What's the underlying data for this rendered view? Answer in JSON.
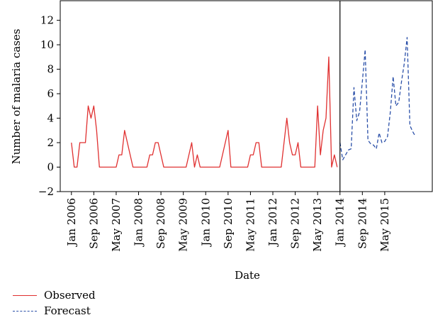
{
  "chart_data": {
    "type": "line",
    "xlabel": "Date",
    "ylabel": "Number of malaria cases",
    "ylim": [
      -2,
      13.6
    ],
    "yticks": [
      -2,
      0,
      2,
      4,
      6,
      8,
      10,
      12
    ],
    "xlim": [
      "2005-09",
      "2016-10"
    ],
    "xtick_labels": [
      "Jan 2006",
      "Sep 2006",
      "May 2007",
      "Jan 2008",
      "Sep 2008",
      "May 2009",
      "Jan 2010",
      "Sep 2010",
      "May 2011",
      "Jan 2012",
      "Sep 2012",
      "May 2013",
      "Jan 2014",
      "Sep 2014",
      "May 2015"
    ],
    "xtick_dates": [
      "2006-01",
      "2006-09",
      "2007-05",
      "2008-01",
      "2008-09",
      "2009-05",
      "2010-01",
      "2010-09",
      "2011-05",
      "2012-01",
      "2012-09",
      "2013-05",
      "2014-01",
      "2014-09",
      "2015-05"
    ],
    "split_date": "2014-01",
    "series": [
      {
        "name": "Observed",
        "color": "#e03030",
        "dash": "solid",
        "points": [
          [
            "2006-01",
            2
          ],
          [
            "2006-02",
            0
          ],
          [
            "2006-03",
            0
          ],
          [
            "2006-04",
            2
          ],
          [
            "2006-05",
            2
          ],
          [
            "2006-06",
            2
          ],
          [
            "2006-07",
            5
          ],
          [
            "2006-08",
            4
          ],
          [
            "2006-09",
            5
          ],
          [
            "2006-10",
            3
          ],
          [
            "2006-11",
            0
          ],
          [
            "2006-12",
            0
          ],
          [
            "2007-01",
            0
          ],
          [
            "2007-02",
            0
          ],
          [
            "2007-03",
            0
          ],
          [
            "2007-04",
            0
          ],
          [
            "2007-05",
            0
          ],
          [
            "2007-06",
            1
          ],
          [
            "2007-07",
            1
          ],
          [
            "2007-08",
            3
          ],
          [
            "2007-09",
            2
          ],
          [
            "2007-10",
            1
          ],
          [
            "2007-11",
            0
          ],
          [
            "2007-12",
            0
          ],
          [
            "2008-01",
            0
          ],
          [
            "2008-02",
            0
          ],
          [
            "2008-03",
            0
          ],
          [
            "2008-04",
            0
          ],
          [
            "2008-05",
            1
          ],
          [
            "2008-06",
            1
          ],
          [
            "2008-07",
            2
          ],
          [
            "2008-08",
            2
          ],
          [
            "2008-09",
            1
          ],
          [
            "2008-10",
            0
          ],
          [
            "2008-11",
            0
          ],
          [
            "2008-12",
            0
          ],
          [
            "2009-01",
            0
          ],
          [
            "2009-02",
            0
          ],
          [
            "2009-03",
            0
          ],
          [
            "2009-04",
            0
          ],
          [
            "2009-05",
            0
          ],
          [
            "2009-06",
            0
          ],
          [
            "2009-07",
            1
          ],
          [
            "2009-08",
            2
          ],
          [
            "2009-09",
            0
          ],
          [
            "2009-10",
            1
          ],
          [
            "2009-11",
            0
          ],
          [
            "2009-12",
            0
          ],
          [
            "2010-01",
            0
          ],
          [
            "2010-02",
            0
          ],
          [
            "2010-03",
            0
          ],
          [
            "2010-04",
            0
          ],
          [
            "2010-05",
            0
          ],
          [
            "2010-06",
            0
          ],
          [
            "2010-07",
            1
          ],
          [
            "2010-08",
            2
          ],
          [
            "2010-09",
            3
          ],
          [
            "2010-10",
            0
          ],
          [
            "2010-11",
            0
          ],
          [
            "2010-12",
            0
          ],
          [
            "2011-01",
            0
          ],
          [
            "2011-02",
            0
          ],
          [
            "2011-03",
            0
          ],
          [
            "2011-04",
            0
          ],
          [
            "2011-05",
            1
          ],
          [
            "2011-06",
            1
          ],
          [
            "2011-07",
            2
          ],
          [
            "2011-08",
            2
          ],
          [
            "2011-09",
            0
          ],
          [
            "2011-10",
            0
          ],
          [
            "2011-11",
            0
          ],
          [
            "2011-12",
            0
          ],
          [
            "2012-01",
            0
          ],
          [
            "2012-02",
            0
          ],
          [
            "2012-03",
            0
          ],
          [
            "2012-04",
            0
          ],
          [
            "2012-05",
            2
          ],
          [
            "2012-06",
            4
          ],
          [
            "2012-07",
            2
          ],
          [
            "2012-08",
            1
          ],
          [
            "2012-09",
            1
          ],
          [
            "2012-10",
            2
          ],
          [
            "2012-11",
            0
          ],
          [
            "2012-12",
            0
          ],
          [
            "2013-01",
            0
          ],
          [
            "2013-02",
            0
          ],
          [
            "2013-03",
            0
          ],
          [
            "2013-04",
            0
          ],
          [
            "2013-05",
            5
          ],
          [
            "2013-06",
            1
          ],
          [
            "2013-07",
            3
          ],
          [
            "2013-08",
            4
          ],
          [
            "2013-09",
            9
          ],
          [
            "2013-10",
            0
          ],
          [
            "2013-11",
            1
          ],
          [
            "2013-12",
            0
          ]
        ]
      },
      {
        "name": "Forecast",
        "color": "#2a4fa8",
        "dash": "dashed",
        "points": [
          [
            "2014-01",
            2.0
          ],
          [
            "2014-02",
            0.6
          ],
          [
            "2014-03",
            1.0
          ],
          [
            "2014-04",
            1.4
          ],
          [
            "2014-05",
            1.5
          ],
          [
            "2014-06",
            6.5
          ],
          [
            "2014-07",
            3.8
          ],
          [
            "2014-08",
            4.5
          ],
          [
            "2014-09",
            7.0
          ],
          [
            "2014-10",
            9.6
          ],
          [
            "2014-11",
            2.2
          ],
          [
            "2014-12",
            1.9
          ],
          [
            "2015-01",
            1.8
          ],
          [
            "2015-02",
            1.5
          ],
          [
            "2015-03",
            2.8
          ],
          [
            "2015-04",
            2.0
          ],
          [
            "2015-05",
            2.1
          ],
          [
            "2015-06",
            2.5
          ],
          [
            "2015-07",
            4.5
          ],
          [
            "2015-08",
            7.4
          ],
          [
            "2015-09",
            5.0
          ],
          [
            "2015-10",
            5.3
          ],
          [
            "2015-11",
            7.0
          ],
          [
            "2015-12",
            8.5
          ],
          [
            "2016-01",
            10.6
          ],
          [
            "2016-02",
            3.4
          ],
          [
            "2016-03",
            2.9
          ],
          [
            "2016-04",
            2.5
          ]
        ]
      }
    ],
    "legend": "bottom-left"
  }
}
